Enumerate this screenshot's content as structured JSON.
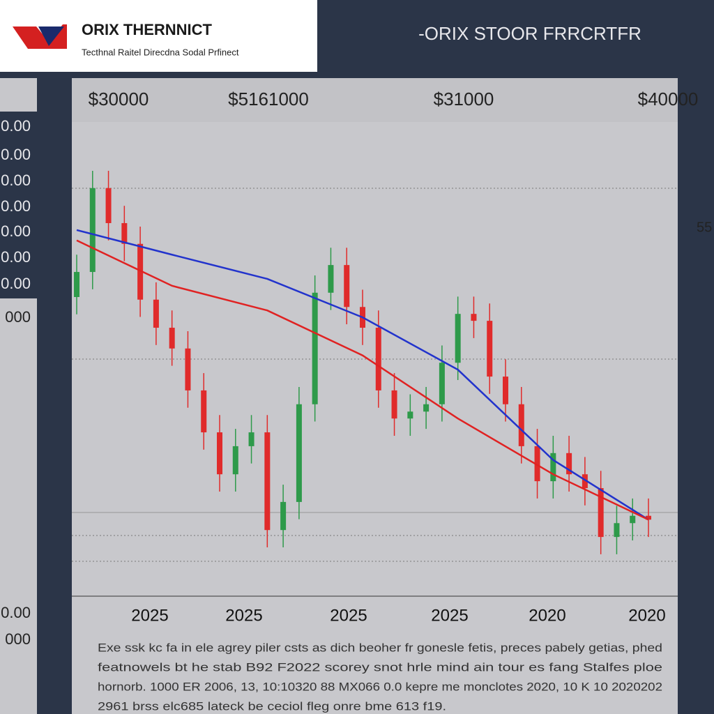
{
  "chart_data": {
    "type": "candlestick",
    "title": "ORIX THERNNICT",
    "subtitle": "Tecthnal Raitel Direcdna Sodal Prfinect",
    "header_right": "-ORIX STOOR FRRCRTFR",
    "top_labels": [
      "$30000",
      "$5161000",
      "$31000",
      "$40000"
    ],
    "side_labels": [
      "0.00",
      "0.00",
      "0.00",
      "0.00",
      "0.00",
      "0.00",
      "0.00",
      "000",
      "0.00",
      "000"
    ],
    "right_label": "55",
    "x_labels": [
      "2025",
      "2025",
      "2025",
      "2025",
      "2020",
      "2020"
    ],
    "caption": [
      "Exe ssk kc fa in ele agrey piler csts as dich beoher fr gonesle fetis, preces pabely getias, phed",
      "featnowels bt he stab B92 F2022 scorey snot hrle mind ain tour es fang Stalfes ploe",
      "hornorb. 1000 ER 2006, 13, 10:10320 88 MX066 0.0 kepre me monclotes 2020, 10 K 10 2020202",
      "2961 brss elc685 lateck be ceciol fleg onre bme 613 f19."
    ],
    "ylim": [
      0,
      100
    ],
    "open": [
      70,
      75.8,
      95.2,
      87.1,
      82.3,
      69.4,
      62.9,
      58.1,
      48.4,
      38.7,
      29.0,
      35.5,
      38.7,
      16.1,
      22.6,
      45.2,
      71.0,
      77.4,
      67.7,
      62.9,
      48.4,
      41.9,
      43.5,
      45.2,
      54.8,
      66.1,
      64.5,
      51.6,
      45.2,
      35.5,
      27.4,
      33.9,
      29.0,
      25.8,
      14.5,
      17.7,
      19.4
    ],
    "high": [
      79.8,
      99.2,
      99.2,
      91.1,
      86.3,
      73.4,
      66.9,
      62.1,
      52.4,
      42.7,
      39.5,
      42.7,
      42.7,
      26.6,
      49.2,
      75.0,
      81.4,
      81.4,
      71.7,
      66.9,
      52.4,
      47.5,
      49.2,
      58.8,
      70.1,
      70.1,
      68.5,
      55.6,
      49.2,
      39.5,
      37.9,
      37.9,
      33.0,
      29.8,
      21.7,
      23.4,
      23.4
    ],
    "low": [
      66,
      71.8,
      83.1,
      78.3,
      65.4,
      58.9,
      54.1,
      44.4,
      34.7,
      25.0,
      25.0,
      31.5,
      12.1,
      12.1,
      18.6,
      41.2,
      67.0,
      63.7,
      58.9,
      44.4,
      37.9,
      37.9,
      39.5,
      41.2,
      50.8,
      60.5,
      47.6,
      41.2,
      31.5,
      23.4,
      23.4,
      25.0,
      21.8,
      10.5,
      10.5,
      13.7,
      14.5
    ],
    "close": [
      75.8,
      95.2,
      87.1,
      82.3,
      69.4,
      62.9,
      58.1,
      48.4,
      38.7,
      29.0,
      35.5,
      38.7,
      16.1,
      22.6,
      45.2,
      71.0,
      77.4,
      67.7,
      62.9,
      48.4,
      41.9,
      43.5,
      45.2,
      54.8,
      66.1,
      64.5,
      51.6,
      45.2,
      35.5,
      27.4,
      33.9,
      29.0,
      25.8,
      14.5,
      17.7,
      19.4,
      18.5
    ],
    "up_color": "#2e9a4a",
    "down_color": "#e02b2b",
    "lines": [
      {
        "color": "#2233cc",
        "x": [
          0,
          6,
          12,
          18,
          24,
          30,
          36
        ],
        "values": [
          85.5,
          79.8,
          74.2,
          65.3,
          53.2,
          32.3,
          18.5
        ]
      },
      {
        "color": "#e02222",
        "x": [
          0,
          6,
          12,
          18,
          24,
          30,
          36
        ],
        "values": [
          83.1,
          72.6,
          66.9,
          56.5,
          41.9,
          29.0,
          18.5
        ]
      }
    ]
  }
}
